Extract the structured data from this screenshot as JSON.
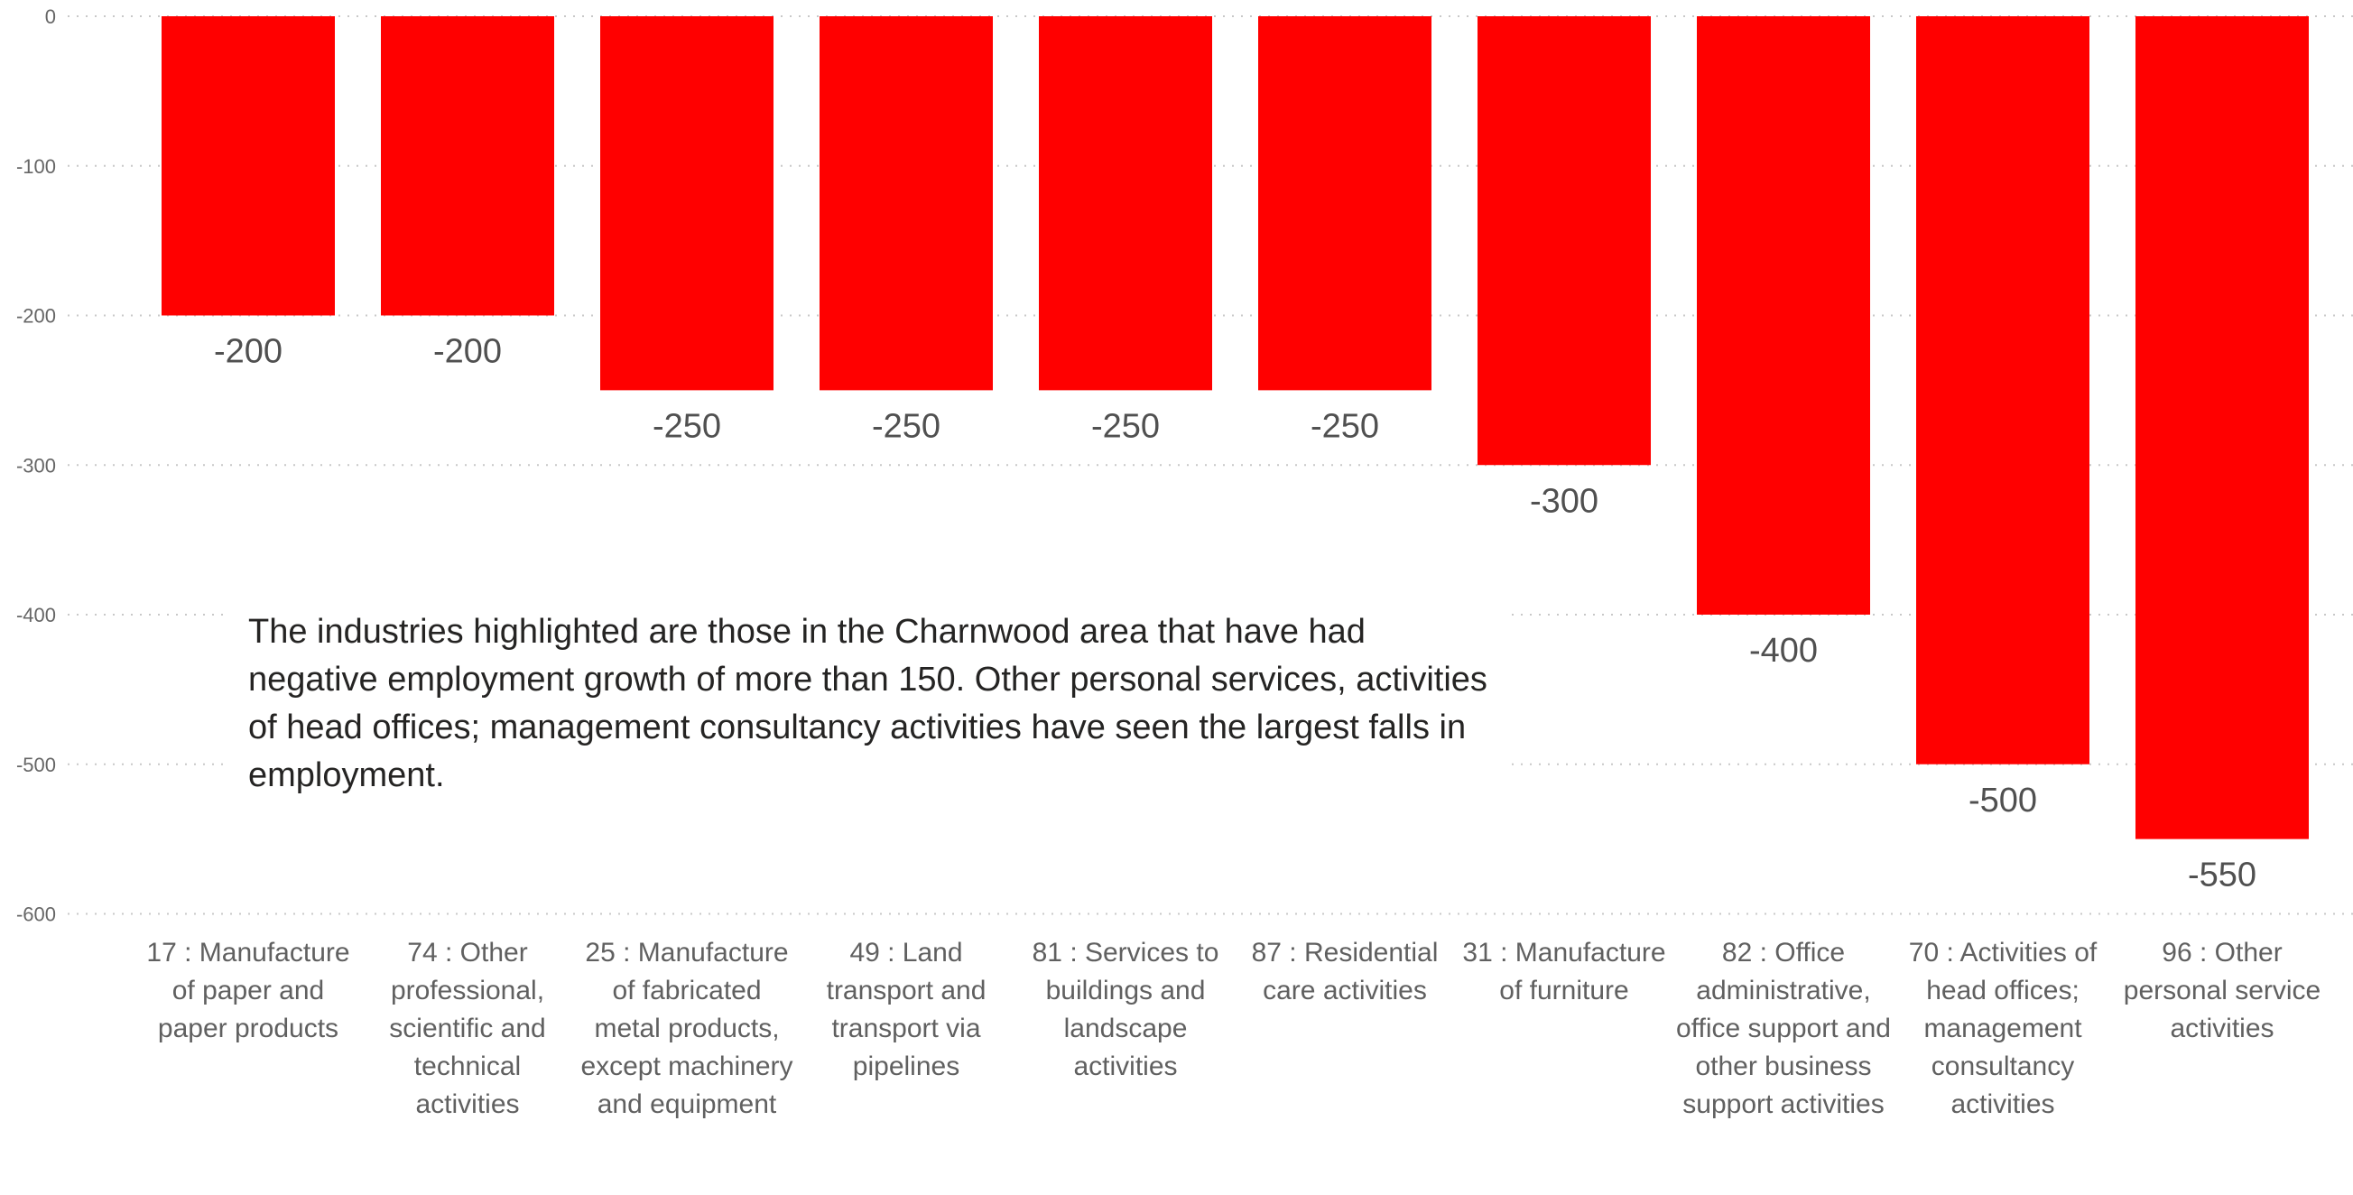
{
  "chart_data": {
    "type": "bar",
    "categories": [
      "17 : Manufacture of paper and paper products",
      "74 : Other professional, scientific and technical activities",
      "25 : Manufacture of fabricated metal products, except machinery and equipment",
      "49 : Land transport and transport via pipelines",
      "81 : Services to buildings and landscape activities",
      "87 : Residential care activities",
      "31 : Manufacture of furniture",
      "82 : Office administrative, office support and other business support activities",
      "70 : Activities of head offices; management consultancy activities",
      "96 : Other personal service activities"
    ],
    "values": [
      -200,
      -200,
      -250,
      -250,
      -250,
      -250,
      -300,
      -400,
      -500,
      -550
    ],
    "data_labels": [
      "-200",
      "-200",
      "-250",
      "-250",
      "-250",
      "-250",
      "-300",
      "-400",
      "-500",
      "-550"
    ],
    "yticks": [
      "0",
      "-100",
      "-200",
      "-300",
      "-400",
      "-500",
      "-600"
    ],
    "ytick_values": [
      0,
      -100,
      -200,
      -300,
      -400,
      -500,
      -600
    ],
    "ylim": [
      -600,
      0
    ],
    "grid": true,
    "bar_color": "#FF0000",
    "title": "",
    "xlabel": "",
    "ylabel": "",
    "annotation": "The industries highlighted are those in the Charnwood area that have had negative employment growth of more than 150.  Other personal services, activities of head offices; management consultancy activities have seen the largest falls in employment."
  }
}
